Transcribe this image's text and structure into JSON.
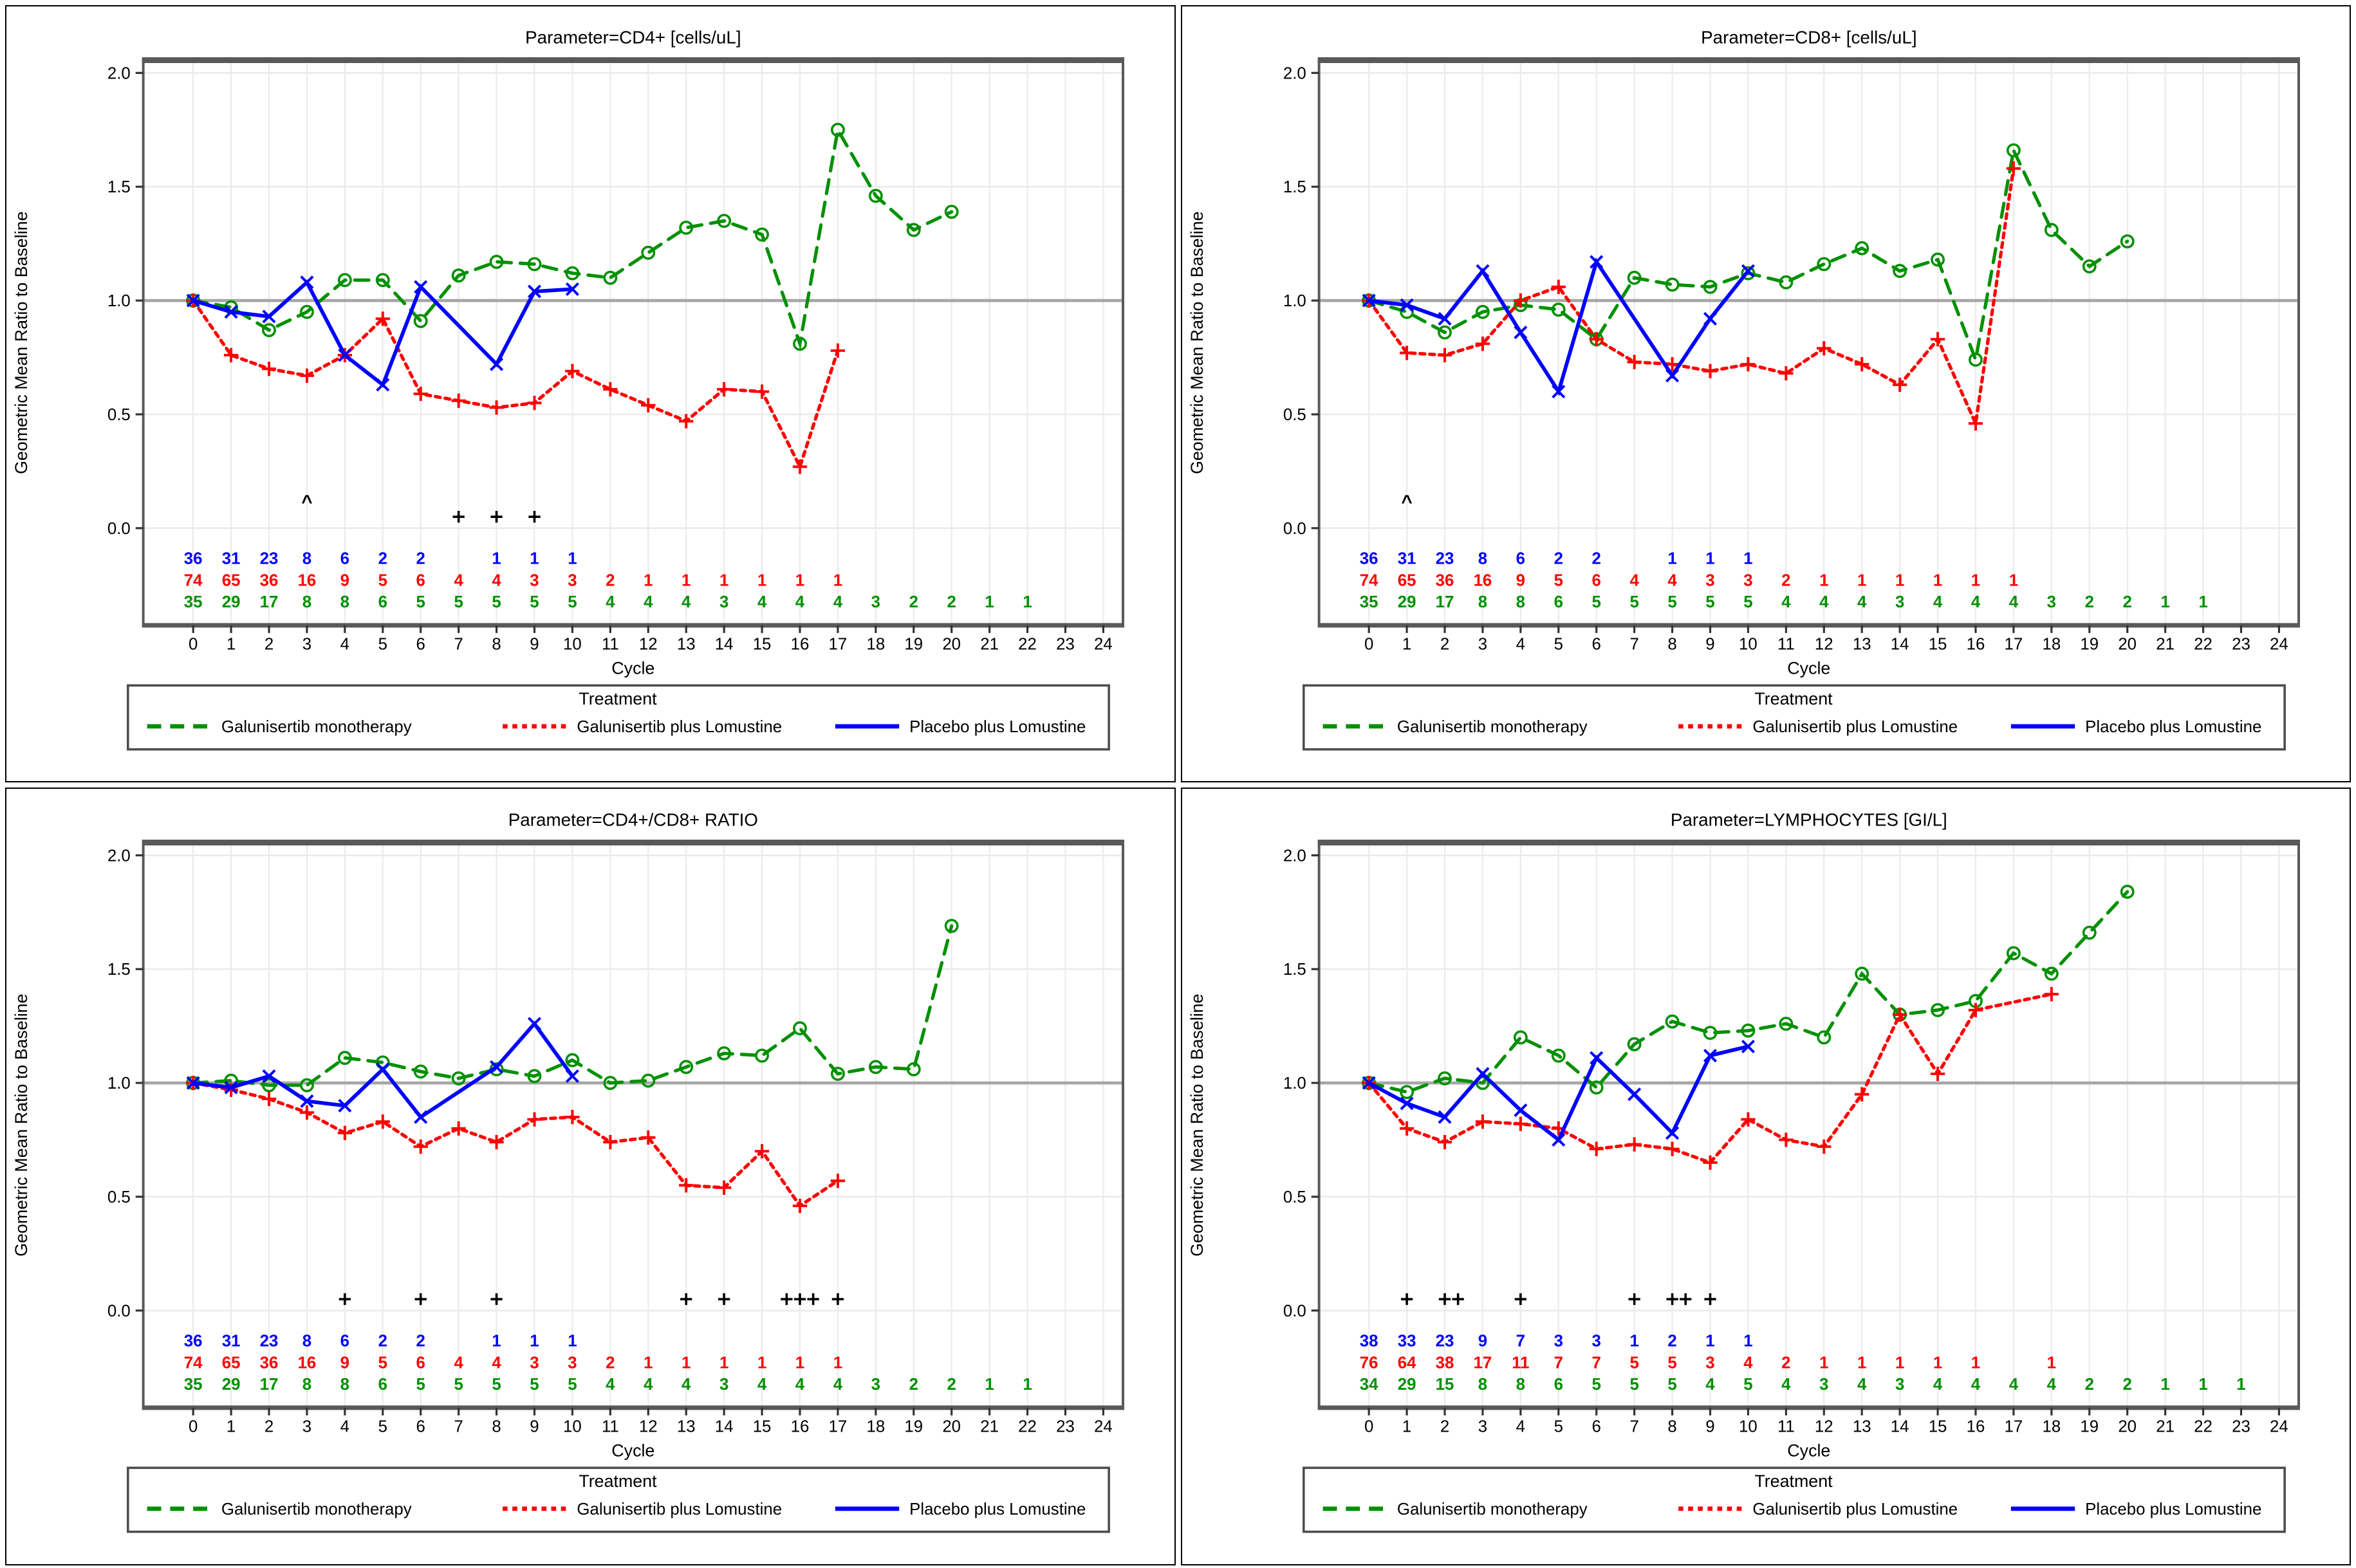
{
  "page": {
    "background": "#ffffff"
  },
  "styles": {
    "green": "#009000",
    "red": "#ff0000",
    "blue": "#0000ff",
    "refline_color": "#a6a6a6",
    "grid_color": "#ebebeb",
    "frame_color": "#595959",
    "annotation_color": "#000000",
    "text_color": "#000000"
  },
  "axes": {
    "y_label": "Geometric Mean Ratio to Baseline",
    "x_label": "Cycle",
    "y_ticks": [
      {
        "v": 0.0,
        "label": "0.0"
      },
      {
        "v": 0.5,
        "label": "0.5"
      },
      {
        "v": 1.0,
        "label": "1.0"
      },
      {
        "v": 1.5,
        "label": "1.5"
      },
      {
        "v": 2.0,
        "label": "2.0"
      }
    ],
    "x_ticks": [
      0,
      1,
      2,
      3,
      4,
      5,
      6,
      7,
      8,
      9,
      10,
      11,
      12,
      13,
      14,
      15,
      16,
      17,
      18,
      19,
      20,
      21,
      22,
      23,
      24
    ],
    "ylim": [
      0.0,
      2.0
    ],
    "reference_line": 1.0,
    "grid": true
  },
  "legend": {
    "title": "Treatment",
    "entries": [
      {
        "label": "Galunisertib monotherapy",
        "color_key": "green",
        "line": "long-dash",
        "marker": "circle"
      },
      {
        "label": "Galunisertib plus Lomustine",
        "color_key": "red",
        "line": "short-dash",
        "marker": "plus"
      },
      {
        "label": "Placebo plus Lomustine",
        "color_key": "blue",
        "line": "solid",
        "marker": "x"
      }
    ]
  },
  "chart_data": [
    {
      "type": "line",
      "title": "Parameter=CD4+ [cells/uL]",
      "xlabel": "Cycle",
      "ylabel": "Geometric Mean Ratio to Baseline",
      "series": [
        {
          "name": "Galunisertib monotherapy",
          "color_key": "green",
          "values": [
            1.0,
            0.97,
            0.87,
            0.95,
            1.09,
            1.09,
            0.91,
            1.11,
            1.17,
            1.16,
            1.12,
            1.1,
            1.21,
            1.32,
            1.35,
            1.29,
            0.81,
            1.75,
            1.46,
            1.31,
            1.39
          ]
        },
        {
          "name": "Galunisertib plus Lomustine",
          "color_key": "red",
          "values": [
            1.0,
            0.76,
            0.7,
            0.67,
            0.76,
            0.92,
            0.59,
            0.56,
            0.53,
            0.55,
            0.69,
            0.61,
            0.54,
            0.47,
            0.61,
            0.6,
            0.27,
            0.78
          ]
        },
        {
          "name": "Placebo plus Lomustine",
          "color_key": "blue",
          "values": [
            1.0,
            0.95,
            0.93,
            1.08,
            0.76,
            0.63,
            1.06,
            null,
            0.72,
            1.04,
            1.05
          ]
        }
      ],
      "annotations": [
        {
          "symbol": "^",
          "cycle": 3,
          "y": 0.11
        },
        {
          "symbol": "+",
          "cycle": 7,
          "y": 0.05
        },
        {
          "symbol": "+",
          "cycle": 8,
          "y": 0.05
        },
        {
          "symbol": "+",
          "cycle": 9,
          "y": 0.05
        }
      ],
      "at_risk": [
        {
          "color_key": "blue",
          "counts": [
            36,
            31,
            23,
            8,
            6,
            2,
            2,
            null,
            1,
            1,
            1
          ]
        },
        {
          "color_key": "red",
          "counts": [
            74,
            65,
            36,
            16,
            9,
            5,
            6,
            4,
            4,
            3,
            3,
            2,
            1,
            1,
            1,
            1,
            1,
            1
          ]
        },
        {
          "color_key": "green",
          "counts": [
            35,
            29,
            17,
            8,
            8,
            6,
            5,
            5,
            5,
            5,
            5,
            4,
            4,
            4,
            3,
            4,
            4,
            4,
            3,
            2,
            2,
            1,
            1
          ]
        }
      ]
    },
    {
      "type": "line",
      "title": "Parameter=CD8+ [cells/uL]",
      "xlabel": "Cycle",
      "ylabel": "Geometric Mean Ratio to Baseline",
      "series": [
        {
          "name": "Galunisertib monotherapy",
          "color_key": "green",
          "values": [
            1.0,
            0.95,
            0.86,
            0.95,
            0.98,
            0.96,
            0.83,
            1.1,
            1.07,
            1.06,
            1.12,
            1.08,
            1.16,
            1.23,
            1.13,
            1.18,
            0.74,
            1.66,
            1.31,
            1.15,
            1.26
          ]
        },
        {
          "name": "Galunisertib plus Lomustine",
          "color_key": "red",
          "values": [
            1.0,
            0.77,
            0.76,
            0.81,
            1.0,
            1.06,
            0.83,
            0.73,
            0.72,
            0.69,
            0.72,
            0.68,
            0.79,
            0.72,
            0.63,
            0.83,
            0.46,
            1.58
          ]
        },
        {
          "name": "Placebo plus Lomustine",
          "color_key": "blue",
          "values": [
            1.0,
            0.98,
            0.92,
            1.13,
            0.86,
            0.6,
            1.17,
            null,
            0.67,
            0.92,
            1.13
          ]
        }
      ],
      "annotations": [
        {
          "symbol": "^",
          "cycle": 1,
          "y": 0.11
        }
      ],
      "at_risk": [
        {
          "color_key": "blue",
          "counts": [
            36,
            31,
            23,
            8,
            6,
            2,
            2,
            null,
            1,
            1,
            1
          ]
        },
        {
          "color_key": "red",
          "counts": [
            74,
            65,
            36,
            16,
            9,
            5,
            6,
            4,
            4,
            3,
            3,
            2,
            1,
            1,
            1,
            1,
            1,
            1
          ]
        },
        {
          "color_key": "green",
          "counts": [
            35,
            29,
            17,
            8,
            8,
            6,
            5,
            5,
            5,
            5,
            5,
            4,
            4,
            4,
            3,
            4,
            4,
            4,
            3,
            2,
            2,
            1,
            1
          ]
        }
      ]
    },
    {
      "type": "line",
      "title": "Parameter=CD4+/CD8+ RATIO",
      "xlabel": "Cycle",
      "ylabel": "Geometric Mean Ratio to Baseline",
      "series": [
        {
          "name": "Galunisertib monotherapy",
          "color_key": "green",
          "values": [
            1.0,
            1.01,
            0.99,
            0.99,
            1.11,
            1.09,
            1.05,
            1.02,
            1.06,
            1.03,
            1.1,
            1.0,
            1.01,
            1.07,
            1.13,
            1.12,
            1.24,
            1.04,
            1.07,
            1.06,
            1.69
          ]
        },
        {
          "name": "Galunisertib plus Lomustine",
          "color_key": "red",
          "values": [
            1.0,
            0.97,
            0.93,
            0.87,
            0.78,
            0.83,
            0.72,
            0.8,
            0.74,
            0.84,
            0.85,
            0.74,
            0.76,
            0.55,
            0.54,
            0.7,
            0.46,
            0.57
          ]
        },
        {
          "name": "Placebo plus Lomustine",
          "color_key": "blue",
          "values": [
            1.0,
            0.98,
            1.03,
            0.92,
            0.9,
            1.06,
            0.85,
            null,
            1.07,
            1.26,
            1.03
          ]
        }
      ],
      "annotations": [
        {
          "symbol": "+",
          "cycle": 4,
          "y": 0.05
        },
        {
          "symbol": "+",
          "cycle": 6,
          "y": 0.05
        },
        {
          "symbol": "+",
          "cycle": 8,
          "y": 0.05
        },
        {
          "symbol": "+",
          "cycle": 13,
          "y": 0.05
        },
        {
          "symbol": "+",
          "cycle": 14,
          "y": 0.05
        },
        {
          "symbol": "+",
          "cycle": 15.65,
          "y": 0.05
        },
        {
          "symbol": "+",
          "cycle": 16,
          "y": 0.05
        },
        {
          "symbol": "+",
          "cycle": 16.35,
          "y": 0.05
        },
        {
          "symbol": "+",
          "cycle": 17,
          "y": 0.05
        }
      ],
      "at_risk": [
        {
          "color_key": "blue",
          "counts": [
            36,
            31,
            23,
            8,
            6,
            2,
            2,
            null,
            1,
            1,
            1
          ]
        },
        {
          "color_key": "red",
          "counts": [
            74,
            65,
            36,
            16,
            9,
            5,
            6,
            4,
            4,
            3,
            3,
            2,
            1,
            1,
            1,
            1,
            1,
            1
          ]
        },
        {
          "color_key": "green",
          "counts": [
            35,
            29,
            17,
            8,
            8,
            6,
            5,
            5,
            5,
            5,
            5,
            4,
            4,
            4,
            3,
            4,
            4,
            4,
            3,
            2,
            2,
            1,
            1
          ]
        }
      ]
    },
    {
      "type": "line",
      "title": "Parameter=LYMPHOCYTES [GI/L]",
      "xlabel": "Cycle",
      "ylabel": "Geometric Mean Ratio to Baseline",
      "series": [
        {
          "name": "Galunisertib monotherapy",
          "color_key": "green",
          "values": [
            1.0,
            0.96,
            1.02,
            1.0,
            1.2,
            1.12,
            0.98,
            1.17,
            1.27,
            1.22,
            1.23,
            1.26,
            1.2,
            1.48,
            1.3,
            1.32,
            1.36,
            1.57,
            1.48,
            1.66,
            1.84
          ]
        },
        {
          "name": "Galunisertib plus Lomustine",
          "color_key": "red",
          "values": [
            1.0,
            0.8,
            0.74,
            0.83,
            0.82,
            0.8,
            0.71,
            0.73,
            0.71,
            0.65,
            0.84,
            0.75,
            0.72,
            0.95,
            1.3,
            1.04,
            1.32,
            null,
            1.39
          ]
        },
        {
          "name": "Placebo plus Lomustine",
          "color_key": "blue",
          "values": [
            1.0,
            0.91,
            0.85,
            1.04,
            0.88,
            0.75,
            1.11,
            0.95,
            0.78,
            1.12,
            1.16
          ]
        }
      ],
      "annotations": [
        {
          "symbol": "+",
          "cycle": 1,
          "y": 0.05
        },
        {
          "symbol": "+",
          "cycle": 2,
          "y": 0.05
        },
        {
          "symbol": "+",
          "cycle": 2.35,
          "y": 0.05
        },
        {
          "symbol": "+",
          "cycle": 4,
          "y": 0.05
        },
        {
          "symbol": "+",
          "cycle": 7,
          "y": 0.05
        },
        {
          "symbol": "+",
          "cycle": 8,
          "y": 0.05
        },
        {
          "symbol": "+",
          "cycle": 8.35,
          "y": 0.05
        },
        {
          "symbol": "+",
          "cycle": 9,
          "y": 0.05
        }
      ],
      "at_risk": [
        {
          "color_key": "blue",
          "counts": [
            38,
            33,
            23,
            9,
            7,
            3,
            3,
            1,
            2,
            1,
            1
          ]
        },
        {
          "color_key": "red",
          "counts": [
            76,
            64,
            38,
            17,
            11,
            7,
            7,
            5,
            5,
            3,
            4,
            2,
            1,
            1,
            1,
            1,
            1,
            null,
            1
          ]
        },
        {
          "color_key": "green",
          "counts": [
            34,
            29,
            15,
            8,
            8,
            6,
            5,
            5,
            5,
            4,
            5,
            4,
            3,
            4,
            3,
            4,
            4,
            4,
            4,
            2,
            2,
            1,
            1,
            1
          ]
        }
      ]
    }
  ]
}
